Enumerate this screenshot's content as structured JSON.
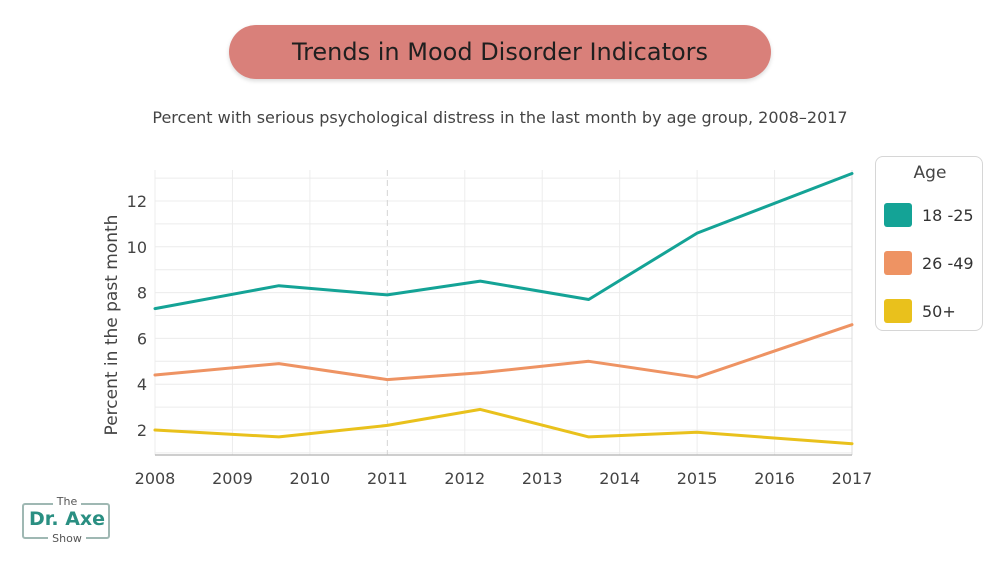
{
  "header": {
    "title": "Trends in Mood Disorder Indicators",
    "subtitle": "Percent with serious psychological distress in the last month by age group, 2008–2017"
  },
  "legend": {
    "title": "Age",
    "items": [
      {
        "label": "18 -25",
        "color": "#14a396"
      },
      {
        "label": "26 -49",
        "color": "#ee9363"
      },
      {
        "label": "50+",
        "color": "#e9c11c"
      }
    ]
  },
  "logo": {
    "top": "The",
    "main": "Dr. Axe",
    "bottom": "Show"
  },
  "chart_data": {
    "type": "line",
    "title": "Trends in Mood Disorder Indicators",
    "subtitle": "Percent with serious psychological distress in the last month by age group, 2008–2017",
    "ylabel": "Percent in the past month",
    "xlabel": "",
    "categories": [
      "2008",
      "2009",
      "2010",
      "2011",
      "2012",
      "2013",
      "2014",
      "2015",
      "2016",
      "2017"
    ],
    "x": [
      2008,
      2009.6,
      2011,
      2012.2,
      2013.6,
      2015,
      2017
    ],
    "ylim": [
      1,
      13.2
    ],
    "yticks": [
      2,
      4,
      6,
      8,
      10,
      12
    ],
    "grid": true,
    "legend_position": "right",
    "series": [
      {
        "name": "18 -25",
        "color": "#14a396",
        "values": [
          7.3,
          8.3,
          7.9,
          8.5,
          7.7,
          10.6,
          13.2
        ]
      },
      {
        "name": "26 -49",
        "color": "#ee9363",
        "values": [
          4.4,
          4.9,
          4.2,
          4.5,
          5.0,
          4.3,
          6.6
        ]
      },
      {
        "name": "50+",
        "color": "#e9c11c",
        "values": [
          2.0,
          1.7,
          2.2,
          2.9,
          1.7,
          1.9,
          1.4
        ]
      }
    ]
  }
}
